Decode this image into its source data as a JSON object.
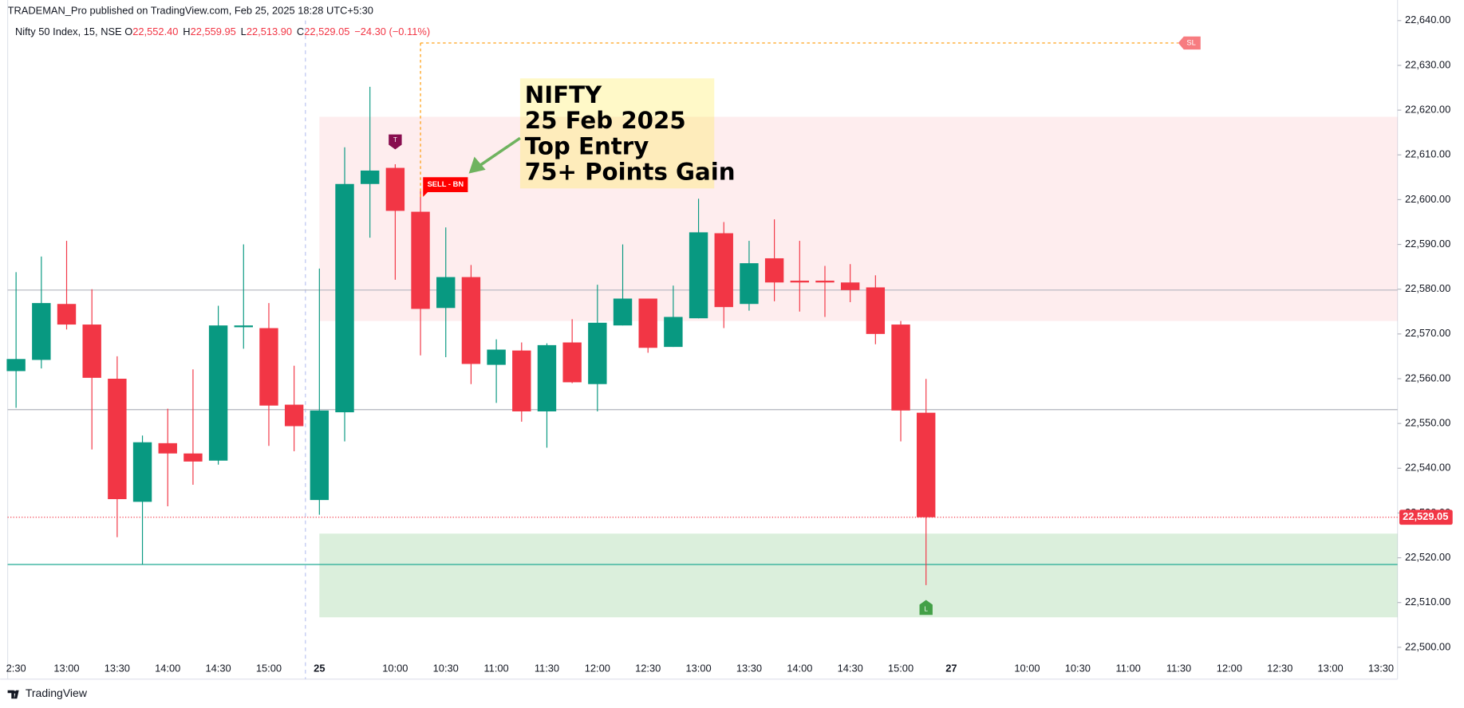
{
  "chart_data": {
    "type": "candlestick",
    "header": "TRADEMAN_Pro published on TradingView.com, Feb 25, 2025 18:28 UTC+5:30",
    "symbol": "Nifty 50 Index, 15, NSE",
    "ohlc_legend": [
      {
        "key": "O",
        "value": "22,552.40"
      },
      {
        "key": "H",
        "value": "22,559.95"
      },
      {
        "key": "L",
        "value": "22,513.90"
      },
      {
        "key": "C",
        "value": "22,529.05"
      }
    ],
    "change": "−24.30 (−0.11%)",
    "categories": [
      "2:30",
      null,
      "13:00",
      null,
      "13:30",
      null,
      "14:00",
      null,
      "14:30",
      null,
      "15:00",
      null,
      "25",
      null,
      null,
      "10:00",
      null,
      "10:30",
      null,
      "11:00",
      null,
      "11:30",
      null,
      "12:00",
      null,
      "12:30",
      null,
      "13:00",
      null,
      "13:30",
      null,
      "14:00",
      null,
      "14:30",
      null,
      "15:00",
      null,
      "27",
      null,
      null,
      "10:00",
      null,
      "10:30",
      null,
      "11:00",
      null,
      "11:30",
      null,
      "12:00",
      null,
      "12:30",
      null,
      "13:00",
      null,
      "13:30"
    ],
    "open": [
      22561.7,
      22564.2,
      22576.7,
      22572.1,
      22560.0,
      22532.5,
      22545.6,
      22543.3,
      22541.7,
      22571.5,
      22571.3,
      22554.2,
      22532.9,
      22552.5,
      22603.5,
      22607.1,
      22597.3,
      22575.8,
      22582.7,
      22563.1,
      22566.3,
      22552.7,
      22568.1,
      22558.8,
      22571.9,
      22577.9,
      22567.1,
      22573.5,
      22592.5,
      22576.7,
      22586.9,
      22581.9,
      22581.9,
      22581.5,
      22580.4,
      22572.1,
      22552.4,
      null,
      null,
      null,
      null,
      null,
      null,
      null,
      null,
      null,
      null,
      null,
      null,
      null,
      null,
      null,
      null,
      null,
      null
    ],
    "high": [
      22583.8,
      22587.3,
      22590.8,
      22580.0,
      22565.0,
      22547.3,
      22553.3,
      22562.1,
      22576.3,
      22590.0,
      22576.9,
      22562.9,
      22584.6,
      22611.7,
      22625.2,
      22607.9,
      22601.9,
      22593.8,
      22585.4,
      22568.8,
      22568.1,
      22567.9,
      22573.3,
      22581.0,
      22590.0,
      22577.9,
      22580.8,
      22600.2,
      22595.0,
      22590.8,
      22595.6,
      22590.8,
      22585.2,
      22585.6,
      22583.1,
      22572.9,
      22559.95,
      null,
      null,
      null,
      null,
      null,
      null,
      null,
      null,
      null,
      null,
      null,
      null,
      null,
      null,
      null,
      null,
      null,
      null
    ],
    "low": [
      22553.5,
      22562.3,
      22571.0,
      22544.2,
      22524.6,
      22518.5,
      22531.5,
      22536.3,
      22540.8,
      22566.7,
      22545.0,
      22543.8,
      22529.6,
      22546.0,
      22591.5,
      22582.1,
      22565.2,
      22564.8,
      22558.8,
      22554.6,
      22550.4,
      22544.6,
      22559.0,
      22552.7,
      22571.9,
      22565.8,
      22567.1,
      22573.5,
      22571.3,
      22575.2,
      22577.3,
      22575.0,
      22573.8,
      22577.1,
      22567.7,
      22546.0,
      22513.9,
      null,
      null,
      null,
      null,
      null,
      null,
      null,
      null,
      null,
      null,
      null,
      null,
      null,
      null,
      null,
      null,
      null,
      null
    ],
    "close": [
      22564.4,
      22576.9,
      22572.1,
      22560.2,
      22533.1,
      22545.8,
      22543.3,
      22541.5,
      22571.9,
      22571.9,
      22554.0,
      22549.4,
      22552.9,
      22603.5,
      22606.5,
      22597.5,
      22575.6,
      22582.7,
      22563.3,
      22566.5,
      22552.7,
      22567.5,
      22559.2,
      22572.5,
      22577.9,
      22566.9,
      22573.8,
      22592.7,
      22576.0,
      22585.8,
      22581.5,
      22581.5,
      22581.5,
      22579.8,
      22570.0,
      22552.9,
      22529.05,
      null,
      null,
      null,
      null,
      null,
      null,
      null,
      null,
      null,
      null,
      null,
      null,
      null,
      null,
      null,
      null,
      null,
      null
    ],
    "up_color": "#089981",
    "down_color": "#f23645",
    "ylim": [
      22492.9,
      22644.6
    ],
    "yticks": [
      {
        "value": 22500,
        "label": "22,500.00"
      },
      {
        "value": 22510,
        "label": "22,510.00"
      },
      {
        "value": 22520,
        "label": "22,520.00"
      },
      {
        "value": 22530,
        "label": "22,530.00"
      },
      {
        "value": 22540,
        "label": "22,540.00"
      },
      {
        "value": 22550,
        "label": "22,550.00"
      },
      {
        "value": 22560,
        "label": "22,560.00"
      },
      {
        "value": 22570,
        "label": "22,570.00"
      },
      {
        "value": 22580,
        "label": "22,580.00"
      },
      {
        "value": 22590,
        "label": "22,590.00"
      },
      {
        "value": 22600,
        "label": "22,600.00"
      },
      {
        "value": 22610,
        "label": "22,610.00"
      },
      {
        "value": 22620,
        "label": "22,620.00"
      },
      {
        "value": 22630,
        "label": "22,630.00"
      },
      {
        "value": 22640,
        "label": "22,640.00"
      }
    ],
    "last_price": {
      "value": 22529.05,
      "label": "22,529.05"
    },
    "zones": [
      {
        "from": 22572.9,
        "to": 22618.5,
        "color": "rgba(242,54,69,0.09)"
      },
      {
        "from": 22506.7,
        "to": 22525.4,
        "color": "rgba(76,175,80,0.2)"
      }
    ],
    "hlines": [
      {
        "value": 22579.8,
        "color": "#b2b5be"
      },
      {
        "value": 22553.1,
        "color": "#b2b5be"
      },
      {
        "value": 22518.5,
        "color": "#22ab94"
      }
    ],
    "stop_loss": {
      "value": 22635,
      "label": "SL"
    },
    "top_marker": "T",
    "low_marker": "L",
    "signal": "SELL - BN",
    "annotation": [
      "NIFTY",
      "25 Feb 2025",
      "Top Entry",
      "75+ Points Gain"
    ],
    "footer": "TradingView"
  }
}
